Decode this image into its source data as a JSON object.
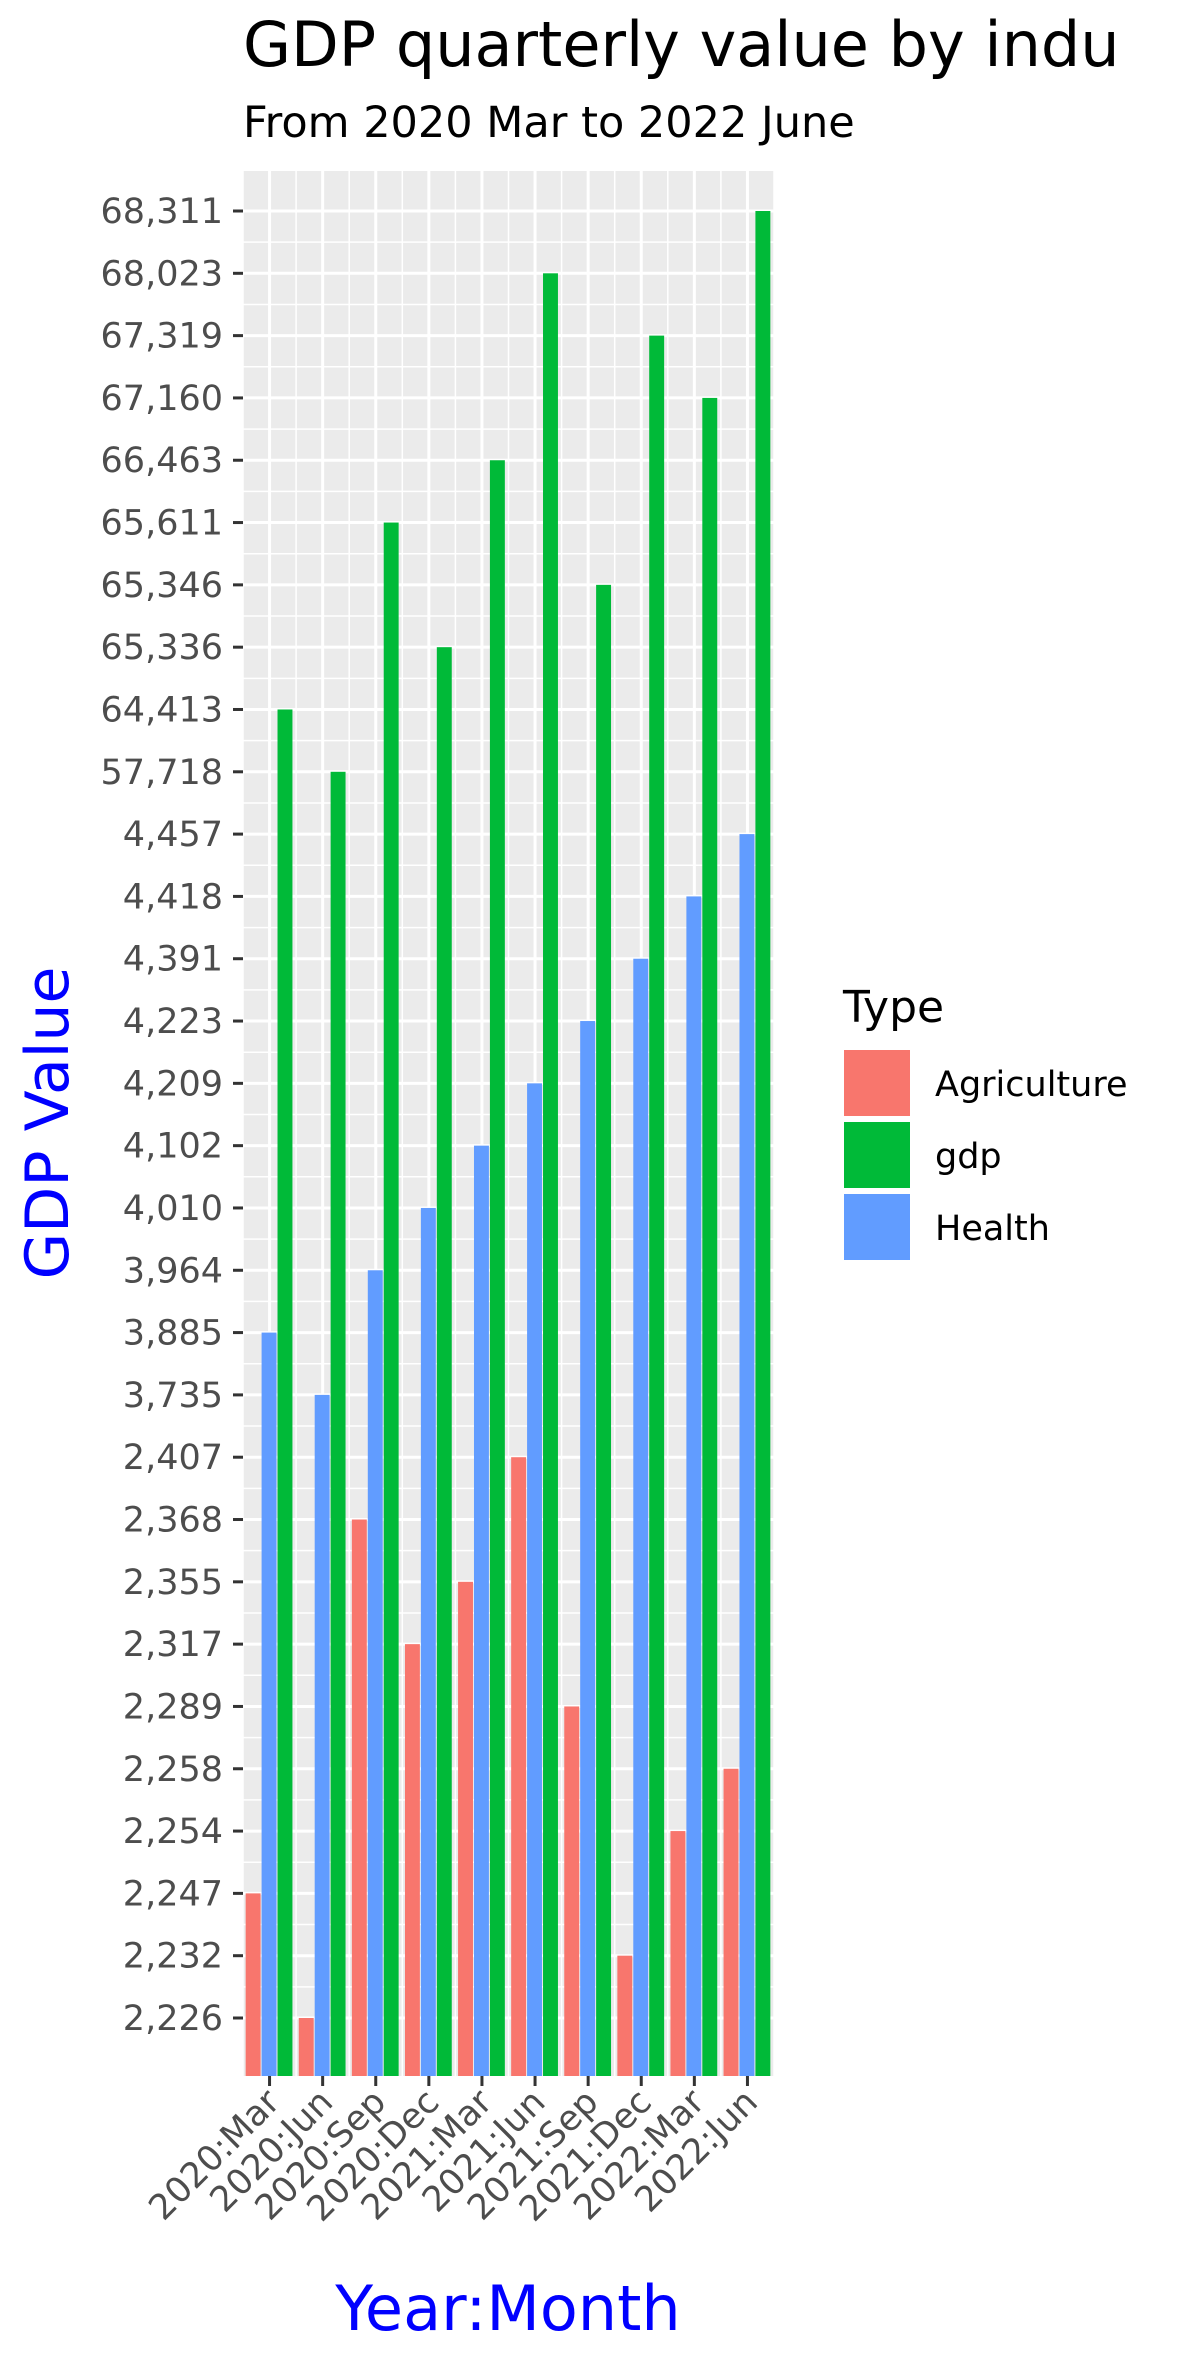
{
  "chart_data": {
    "type": "bar",
    "title": "GDP quarterly value by indu",
    "subtitle": "From 2020 Mar to 2022 June",
    "xlabel": "Year:Month",
    "ylabel": "GDP Value",
    "axis_title_color": "#0000ff",
    "y_scale": "discrete",
    "categories": [
      "2020:Mar",
      "2020:Jun",
      "2020:Sep",
      "2020:Dec",
      "2021:Mar",
      "2021:Jun",
      "2021:Sep",
      "2021:Dec",
      "2022:Mar",
      "2022:Jun"
    ],
    "y_ticks": [
      "2,226",
      "2,232",
      "2,247",
      "2,254",
      "2,258",
      "2,289",
      "2,317",
      "2,355",
      "2,368",
      "2,407",
      "3,735",
      "3,885",
      "3,964",
      "4,010",
      "4,102",
      "4,209",
      "4,223",
      "4,391",
      "4,418",
      "4,457",
      "57,718",
      "64,413",
      "65,336",
      "65,346",
      "65,611",
      "66,463",
      "67,160",
      "67,319",
      "68,023",
      "68,311"
    ],
    "series": [
      {
        "name": "Agriculture",
        "color": "#F8766D",
        "values": [
          2247,
          2226,
          2368,
          2317,
          2355,
          2407,
          2289,
          2232,
          2254,
          2258
        ]
      },
      {
        "name": "gdp",
        "color": "#00BA38",
        "values": [
          64413,
          57718,
          65611,
          65336,
          66463,
          68023,
          65346,
          67319,
          67160,
          68311
        ]
      },
      {
        "name": "Health",
        "color": "#619CFF",
        "values": [
          3885,
          3735,
          3964,
          4010,
          4102,
          4209,
          4223,
          4391,
          4418,
          4457
        ]
      }
    ],
    "legend": {
      "title": "Type",
      "position": "right"
    },
    "grid": true,
    "panel_background": "#EBEBEB"
  }
}
